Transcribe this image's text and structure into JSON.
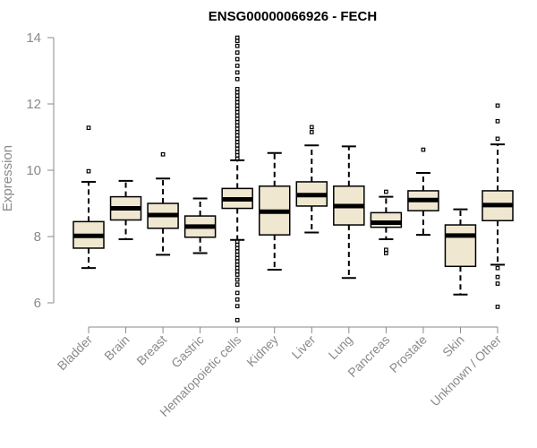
{
  "chart_data": {
    "type": "boxplot",
    "title": "ENSG00000066926 - FECH",
    "xlabel": "",
    "ylabel": "Expression",
    "ylim": [
      5.3,
      14.3
    ],
    "yticks": [
      6,
      8,
      10,
      12,
      14
    ],
    "colors": {
      "box_fill": "#efe7d0",
      "stroke": "#000000",
      "axis": "#8a8a8a",
      "text": "#8a8a8a"
    },
    "categories": [
      "Bladder",
      "Brain",
      "Breast",
      "Gastric",
      "Hematopoietic cells",
      "Kidney",
      "Liver",
      "Lung",
      "Pancreas",
      "Prostate",
      "Skin",
      "Unknown / Other"
    ],
    "boxes": [
      {
        "category": "Bladder",
        "whisker_low": 7.05,
        "q1": 7.65,
        "median": 8.02,
        "q3": 8.45,
        "whisker_high": 9.65,
        "outliers": [
          9.97,
          11.28
        ]
      },
      {
        "category": "Brain",
        "whisker_low": 7.92,
        "q1": 8.5,
        "median": 8.85,
        "q3": 9.2,
        "whisker_high": 9.68,
        "outliers": []
      },
      {
        "category": "Breast",
        "whisker_low": 7.45,
        "q1": 8.25,
        "median": 8.65,
        "q3": 9.0,
        "whisker_high": 9.75,
        "outliers": [
          10.48
        ]
      },
      {
        "category": "Gastric",
        "whisker_low": 7.5,
        "q1": 7.98,
        "median": 8.3,
        "q3": 8.62,
        "whisker_high": 9.15,
        "outliers": []
      },
      {
        "category": "Hematopoietic cells",
        "whisker_low": 7.9,
        "q1": 8.85,
        "median": 9.12,
        "q3": 9.45,
        "whisker_high": 10.3,
        "outliers": [
          5.48,
          5.9,
          6.1,
          6.3,
          6.55,
          6.7,
          6.85,
          6.95,
          7.05,
          7.15,
          7.25,
          7.35,
          7.45,
          7.55,
          7.65,
          7.75,
          7.85,
          10.35,
          10.45,
          10.55,
          10.65,
          10.75,
          10.85,
          10.95,
          11.05,
          11.15,
          11.25,
          11.35,
          11.45,
          11.55,
          11.65,
          11.75,
          11.85,
          11.95,
          12.05,
          12.15,
          12.25,
          12.35,
          12.45,
          12.75,
          12.95,
          13.15,
          13.35,
          13.55,
          13.75,
          13.9,
          14.0
        ]
      },
      {
        "category": "Kidney",
        "whisker_low": 7.0,
        "q1": 8.05,
        "median": 8.75,
        "q3": 9.52,
        "whisker_high": 10.52,
        "outliers": []
      },
      {
        "category": "Liver",
        "whisker_low": 8.12,
        "q1": 8.92,
        "median": 9.25,
        "q3": 9.65,
        "whisker_high": 10.75,
        "outliers": [
          11.15,
          11.3
        ]
      },
      {
        "category": "Lung",
        "whisker_low": 6.75,
        "q1": 8.35,
        "median": 8.92,
        "q3": 9.52,
        "whisker_high": 10.72,
        "outliers": []
      },
      {
        "category": "Pancreas",
        "whisker_low": 7.92,
        "q1": 8.28,
        "median": 8.42,
        "q3": 8.72,
        "whisker_high": 9.2,
        "outliers": [
          7.5,
          7.6,
          9.35
        ]
      },
      {
        "category": "Prostate",
        "whisker_low": 8.05,
        "q1": 8.78,
        "median": 9.1,
        "q3": 9.38,
        "whisker_high": 9.92,
        "outliers": [
          10.62
        ]
      },
      {
        "category": "Skin",
        "whisker_low": 6.25,
        "q1": 7.1,
        "median": 8.03,
        "q3": 8.35,
        "whisker_high": 8.82,
        "outliers": []
      },
      {
        "category": "Unknown / Other",
        "whisker_low": 7.15,
        "q1": 8.48,
        "median": 8.95,
        "q3": 9.38,
        "whisker_high": 10.78,
        "outliers": [
          5.88,
          6.58,
          6.78,
          7.05,
          10.95,
          11.48,
          11.95
        ]
      }
    ]
  }
}
